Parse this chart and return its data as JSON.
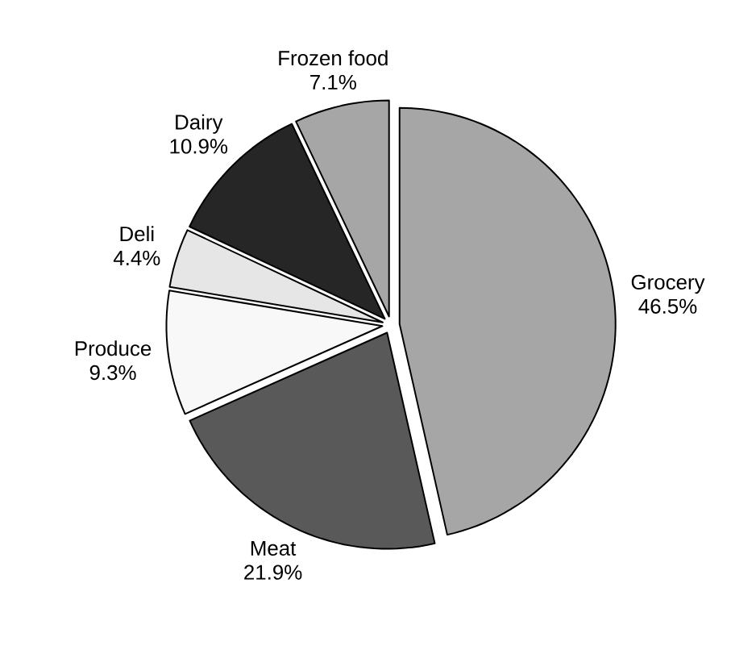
{
  "chart_data": {
    "type": "pie",
    "categories": [
      "Grocery",
      "Meat",
      "Produce",
      "Deli",
      "Dairy",
      "Frozen food"
    ],
    "values": [
      46.5,
      21.9,
      9.3,
      4.4,
      10.9,
      7.1
    ],
    "colors": [
      "#a6a6a6",
      "#595959",
      "#f8f8f8",
      "#e6e6e6",
      "#262626",
      "#a6a6a6"
    ],
    "value_labels": [
      "46.5%",
      "21.9%",
      "9.3%",
      "4.4%",
      "10.9%",
      "7.1%"
    ]
  }
}
